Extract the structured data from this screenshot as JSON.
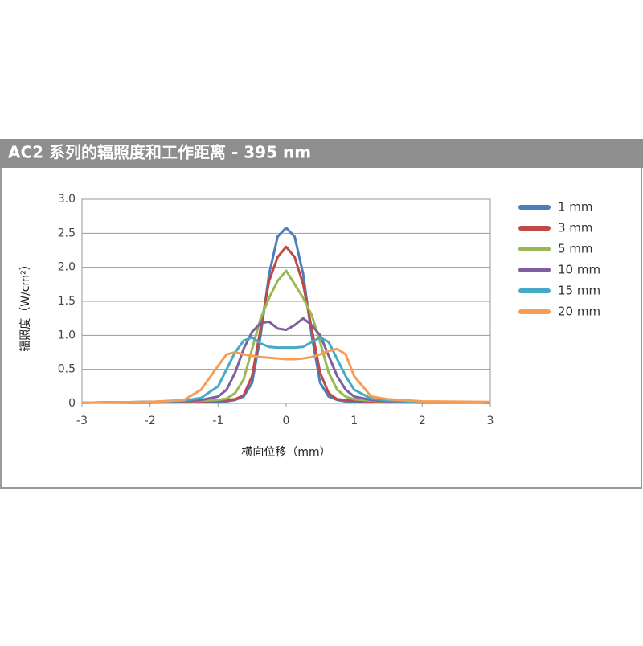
{
  "chart_data": {
    "type": "line",
    "title": "AC2 系列的辐照度和工作距离 - 395 nm",
    "x_label": "横向位移（mm）",
    "y_label": "辐照度（W/cm²）",
    "x": [
      -3,
      -2,
      -1.5,
      -1.25,
      -1,
      -0.875,
      -0.75,
      -0.625,
      -0.5,
      -0.375,
      -0.25,
      -0.125,
      0,
      0.125,
      0.25,
      0.375,
      0.5,
      0.625,
      0.75,
      0.875,
      1,
      1.25,
      1.5,
      2,
      3
    ],
    "series": [
      {
        "name": "1 mm",
        "color": "#4a7ebb",
        "values": [
          0.01,
          0.01,
          0.02,
          0.02,
          0.03,
          0.03,
          0.05,
          0.1,
          0.3,
          1.0,
          1.9,
          2.45,
          2.58,
          2.45,
          1.9,
          1.0,
          0.3,
          0.1,
          0.05,
          0.03,
          0.03,
          0.02,
          0.02,
          0.01,
          0.01
        ]
      },
      {
        "name": "3 mm",
        "color": "#be4b48",
        "values": [
          0.01,
          0.02,
          0.03,
          0.03,
          0.04,
          0.05,
          0.06,
          0.12,
          0.4,
          1.1,
          1.8,
          2.15,
          2.3,
          2.15,
          1.75,
          1.1,
          0.45,
          0.15,
          0.06,
          0.05,
          0.04,
          0.03,
          0.03,
          0.02,
          0.01
        ]
      },
      {
        "name": "5 mm",
        "color": "#98b954",
        "values": [
          0.01,
          0.02,
          0.03,
          0.04,
          0.05,
          0.07,
          0.15,
          0.35,
          0.8,
          1.25,
          1.55,
          1.8,
          1.95,
          1.75,
          1.55,
          1.3,
          0.9,
          0.45,
          0.2,
          0.1,
          0.06,
          0.04,
          0.03,
          0.02,
          0.01
        ]
      },
      {
        "name": "10 mm",
        "color": "#7d60a0",
        "values": [
          0.01,
          0.02,
          0.03,
          0.05,
          0.1,
          0.2,
          0.45,
          0.8,
          1.05,
          1.18,
          1.2,
          1.1,
          1.08,
          1.15,
          1.25,
          1.15,
          1.0,
          0.7,
          0.4,
          0.2,
          0.1,
          0.05,
          0.03,
          0.02,
          0.01
        ]
      },
      {
        "name": "15 mm",
        "color": "#46aac5",
        "values": [
          0.01,
          0.02,
          0.04,
          0.08,
          0.25,
          0.5,
          0.75,
          0.92,
          0.97,
          0.88,
          0.83,
          0.82,
          0.82,
          0.82,
          0.83,
          0.9,
          0.97,
          0.9,
          0.65,
          0.4,
          0.2,
          0.07,
          0.04,
          0.02,
          0.01
        ]
      },
      {
        "name": "20 mm",
        "color": "#f59d56",
        "values": [
          0.01,
          0.02,
          0.05,
          0.2,
          0.55,
          0.72,
          0.75,
          0.72,
          0.7,
          0.68,
          0.67,
          0.66,
          0.65,
          0.65,
          0.66,
          0.68,
          0.72,
          0.77,
          0.8,
          0.72,
          0.4,
          0.1,
          0.06,
          0.03,
          0.02
        ]
      }
    ],
    "xlim": [
      -3,
      3
    ],
    "xticks": [
      -3,
      -2,
      -1,
      0,
      1,
      2,
      3
    ],
    "ylim": [
      0,
      3
    ],
    "yticks": [
      0,
      {
        "value": 0.5,
        "label": "0.5"
      },
      {
        "value": 1,
        "label": "1.0"
      },
      {
        "value": 1.5,
        "label": "1.5"
      },
      {
        "value": 2,
        "label": "2.0"
      },
      2.5,
      {
        "value": 3,
        "label": "3.0"
      }
    ],
    "grid": true,
    "legend": "right"
  }
}
